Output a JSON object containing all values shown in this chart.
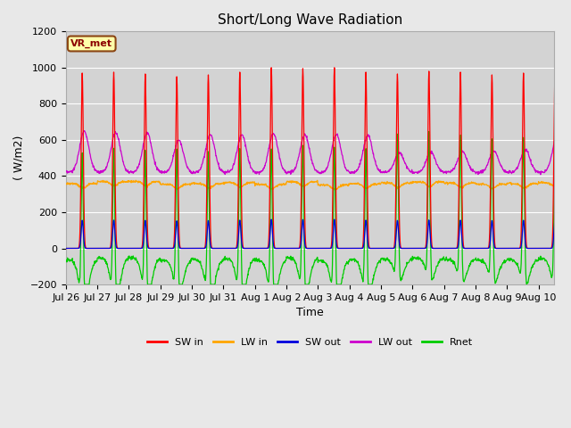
{
  "title": "Short/Long Wave Radiation",
  "ylabel": "( W/m2)",
  "xlabel": "Time",
  "ylim": [
    -200,
    1200
  ],
  "annotation": "VR_met",
  "tick_labels": [
    "Jul 26",
    "Jul 27",
    "Jul 28",
    "Jul 29",
    "Jul 30",
    "Jul 31",
    "Aug 1",
    "Aug 2",
    "Aug 3",
    "Aug 4",
    "Aug 5",
    "Aug 6",
    "Aug 7",
    "Aug 8",
    "Aug 9",
    "Aug 10"
  ],
  "n_days": 16,
  "colors": {
    "SW_in": "#ff0000",
    "LW_in": "#ffa500",
    "SW_out": "#0000dd",
    "LW_out": "#cc00cc",
    "Rnet": "#00cc00"
  },
  "legend_labels": [
    "SW in",
    "LW in",
    "SW out",
    "LW out",
    "Rnet"
  ],
  "fig_bg_color": "#e8e8e8",
  "plot_bg_color": "#d3d3d3",
  "title_fontsize": 11,
  "label_fontsize": 9,
  "tick_fontsize": 8
}
